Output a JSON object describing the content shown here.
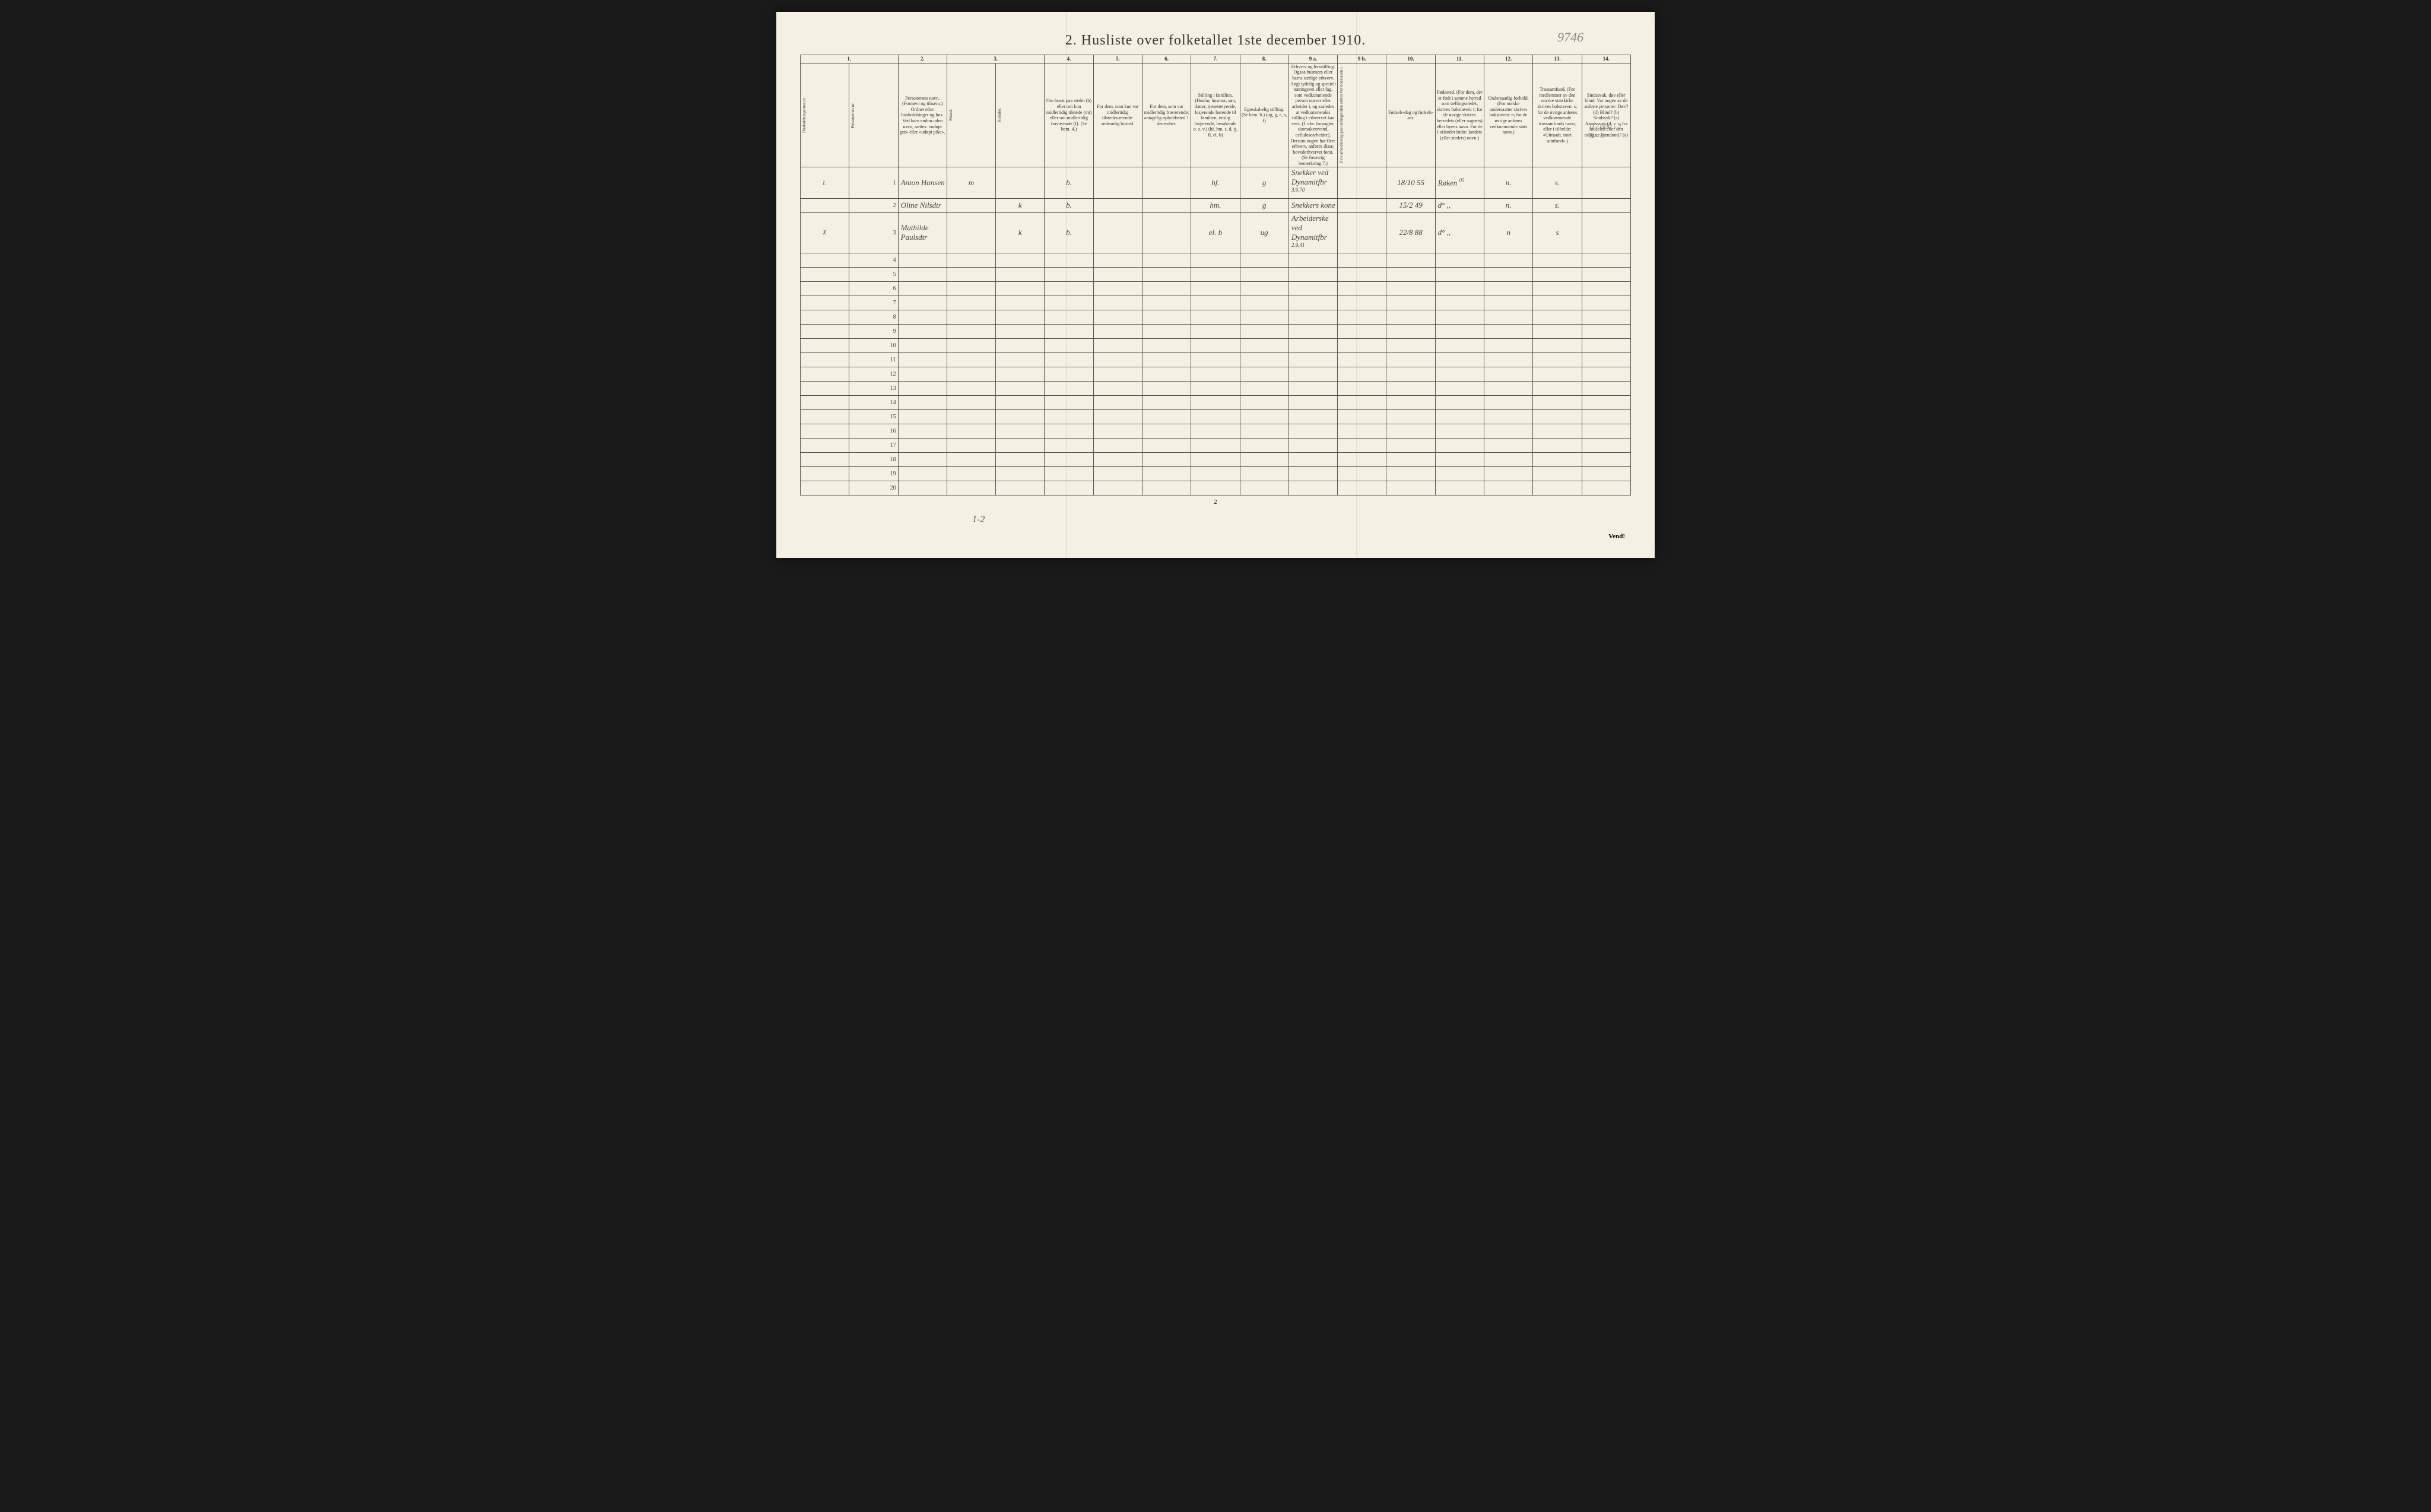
{
  "title": "2.  Husliste over folketallet 1ste december 1910.",
  "top_annotation": "9746",
  "side_annotation": "0 - 600 - 1\n0 - 0",
  "page_number": "2",
  "vend": "Vend!",
  "bottom_hand": "1-2",
  "column_numbers": [
    "1.",
    "2.",
    "3.",
    "4.",
    "5.",
    "6.",
    "7.",
    "8.",
    "9 a.",
    "9 b.",
    "10.",
    "11.",
    "12.",
    "13.",
    "14."
  ],
  "headers": {
    "h1": "Husholdningernes nr.",
    "h1b": "Personernes nr.",
    "h2": "Personernes navn.\n(Fornavn og tilnavn.)\nOrdnet efter husholdninger og hus.\nVed barn endnu uden navn, sættes: «udøpt gut» eller «udøpt pike».",
    "h3": "Kjøn.",
    "h3a": "Mænd.",
    "h3b": "Kvinder.",
    "h3foot": "m.  k.",
    "h4": "Om bosat paa stedet (b) eller om kun midlertidig tilstede (mt) eller om midlertidig fraværende (f). (Se bem. 4.)",
    "h5": "For dem, som kun var midlertidig tilstedeværende:\nsedvanlig bosted.",
    "h6": "For dem, som var midlertidig fraværende:\nantagelig opholdssted 1 december.",
    "h7": "Stilling i familien.\n(Husfar, husmor, søn, datter, tjenestetyende, losjerende hørende til familien, enslig losjerende, besøkende o. s. v.)\n(hf, hm, s, d, tj, fl, el, b)",
    "h8": "Egteskabelig stilling. (Se bem. 6.)\n(ug, g, e, s, f)",
    "h9a": "Erhverv og livsstilling.\nOgsaa husmors eller barns særlige erhverv. Angi tydelig og specielt næringsvei eller fag, som vedkommende person utøver eller arbeider i, og saaledes at vedkommendes stilling i erhvervet kan sees, (f. eks. forpagter, skomakersvend, cellulosearbeider). Dersom nogen har flere erhverv, anføres disse, hovederhvervet først. (Se forøvrig bemerkning 7.)",
    "h9b": "Hvis arbeidsledig paa tællingstiden sættes her bokstaven l.",
    "h10": "Fødsels-dag og fødsels-aar.",
    "h11": "Fødested.\n(For dem, der er født i samme herred som tællingsstedet, skrives bokstaven: t; for de øvrige skrives herredets (eller sognets) eller byens navn. For de i utlandet fødte: landets (eller stedets) navn.)",
    "h12": "Undersaatlig forhold.\n(For norske undersaatter skrives bokstaven: n; for de øvrige anføres vedkommende stats navn.)",
    "h13": "Trossamfund.\n(For medlemmer av den norske statskirke skrives bokstaven: s; for de øvrige anføres vedkommende trossamfunds navn, eller i tilfælde: «Uttraadt, intet samfund».)",
    "h14": "Sindssvak, døv eller blind.\nVar nogen av de anførte personer:\nDøv? (d)\nBlind? (b)\nSindssyk? (s)\nAandssvak (d. v. s. fra fødselen eller den tidligste barndom)? (a)"
  },
  "rows": [
    {
      "hnr": "1.",
      "pnr": "1",
      "name": "Anton Hansen",
      "sex_m": "m",
      "sex_k": "",
      "bosat": "b.",
      "col5": "",
      "col6": "",
      "col7": "hf.",
      "col8": "g",
      "col9a": "Snekker ved Dynamitfbr",
      "col9a_sup": "3.9.70",
      "col9b": "",
      "col10": "18/10 55",
      "col11": "Røken",
      "col11_sup": "05",
      "col12": "n.",
      "col13": "s.",
      "col14": ""
    },
    {
      "hnr": "",
      "pnr": "2",
      "name": "Oline Nilsdtr",
      "sex_m": "",
      "sex_k": "k",
      "bosat": "b.",
      "col5": "",
      "col6": "",
      "col7": "hm.",
      "col8": "g",
      "col9a": "Snekkers kone",
      "col9a_sup": "",
      "col9b": "",
      "col10": "15/2 49",
      "col11": "d°  ,,",
      "col11_sup": "",
      "col12": "n.",
      "col13": "s.",
      "col14": ""
    },
    {
      "hnr": "X",
      "pnr": "3",
      "name": "Mathilde Paulsdtr",
      "sex_m": "",
      "sex_k": "k",
      "bosat": "b.",
      "col5": "",
      "col6": "",
      "col7": "el.",
      "col7_extra": "b",
      "col8": "ug",
      "col9a": "Arbeiderske ved Dynamitfbr",
      "col9a_sup": "2.9.41",
      "col9b": "",
      "col10": "22/8 88",
      "col11": "d°  ,,",
      "col11_sup": "",
      "col12": "n",
      "col13": "s",
      "col14": ""
    }
  ],
  "empty_rows": [
    4,
    5,
    6,
    7,
    8,
    9,
    10,
    11,
    12,
    13,
    14,
    15,
    16,
    17,
    18,
    19,
    20
  ]
}
